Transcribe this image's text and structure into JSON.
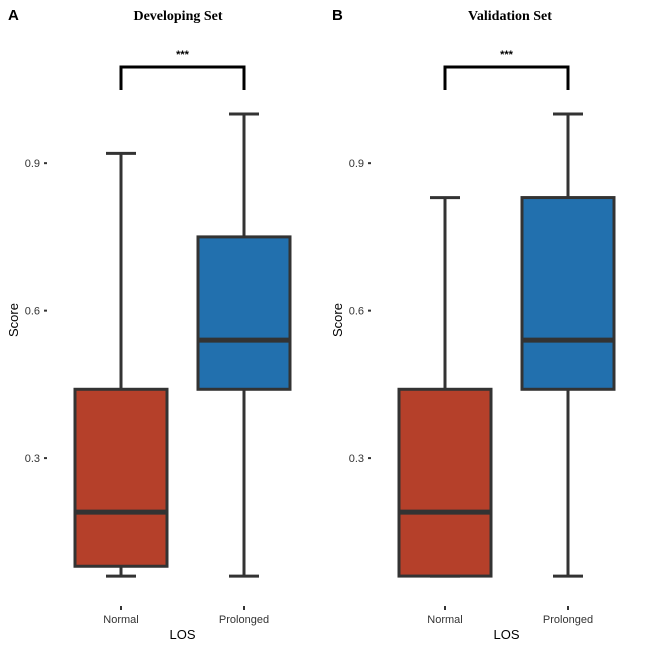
{
  "chart_data": [
    {
      "type": "box",
      "panel_letter": "A",
      "title": "Developing Set",
      "xlabel": "LOS",
      "ylabel": "Score",
      "ylim": [
        0.05,
        1.0
      ],
      "yticks": [
        0.3,
        0.6,
        0.9
      ],
      "ytick_labels": [
        "0.3",
        "0.6",
        "0.9"
      ],
      "categories": [
        "Normal",
        "Prolonged"
      ],
      "boxes": [
        {
          "category": "Normal",
          "min": 0.06,
          "q1": 0.08,
          "median": 0.19,
          "q3": 0.44,
          "max": 0.92,
          "color": "#b5402a"
        },
        {
          "category": "Prolonged",
          "min": 0.06,
          "q1": 0.44,
          "median": 0.54,
          "q3": 0.75,
          "max": 1.0,
          "color": "#2270ae"
        }
      ],
      "significance": "***"
    },
    {
      "type": "box",
      "panel_letter": "B",
      "title": "Validation Set",
      "xlabel": "LOS",
      "ylabel": "Score",
      "ylim": [
        0.05,
        1.0
      ],
      "yticks": [
        0.3,
        0.6,
        0.9
      ],
      "ytick_labels": [
        "0.3",
        "0.6",
        "0.9"
      ],
      "categories": [
        "Normal",
        "Prolonged"
      ],
      "boxes": [
        {
          "category": "Normal",
          "min": 0.06,
          "q1": 0.06,
          "median": 0.19,
          "q3": 0.44,
          "max": 0.83,
          "color": "#b5402a"
        },
        {
          "category": "Prolonged",
          "min": 0.06,
          "q1": 0.44,
          "median": 0.54,
          "q3": 0.83,
          "max": 1.0,
          "color": "#2270ae"
        }
      ],
      "significance": "***"
    }
  ],
  "colors": {
    "outline": "#333333",
    "normal": "#b5402a",
    "prolonged": "#2270ae"
  }
}
